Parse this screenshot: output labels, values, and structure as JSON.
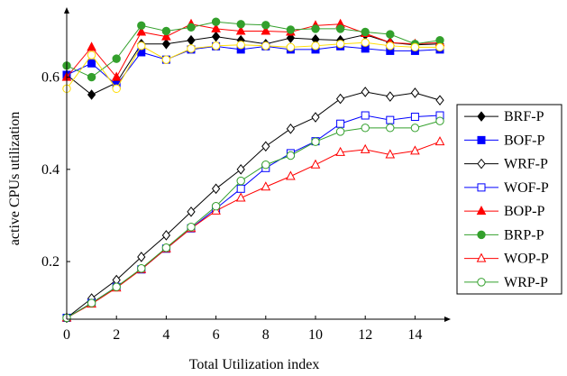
{
  "chart_data": {
    "type": "line",
    "xlabel": "Total Utilization index",
    "ylabel": "active CPUs utilization",
    "xlim": [
      0,
      15
    ],
    "ylim": [
      0.075,
      0.74
    ],
    "xticks": [
      0,
      2,
      4,
      6,
      8,
      10,
      12,
      14
    ],
    "yticks": [
      0.2,
      0.4,
      0.6
    ],
    "ytick_labels": [
      "0.2",
      "0.4",
      "0.6"
    ],
    "grid": false,
    "legend_position": "right",
    "x": [
      0,
      1,
      2,
      3,
      4,
      5,
      6,
      7,
      8,
      9,
      10,
      11,
      12,
      13,
      14,
      15
    ],
    "series": [
      {
        "name": "BRF-P",
        "color": "#000000",
        "marker": "diamond",
        "filled": true,
        "values": [
          0.605,
          0.562,
          0.588,
          0.672,
          0.672,
          0.68,
          0.688,
          0.68,
          0.672,
          0.685,
          0.682,
          0.68,
          0.692,
          0.675,
          0.67,
          0.672
        ]
      },
      {
        "name": "BOF-P",
        "color": "#0000ff",
        "marker": "square",
        "filled": true,
        "values": [
          0.605,
          0.63,
          0.583,
          0.654,
          0.638,
          0.66,
          0.667,
          0.66,
          0.667,
          0.66,
          0.66,
          0.667,
          0.662,
          0.657,
          0.657,
          0.66
        ]
      },
      {
        "name": "WRF-P",
        "color": "#000000",
        "marker": "diamond",
        "filled": false,
        "values": [
          0.078,
          0.12,
          0.16,
          0.21,
          0.257,
          0.308,
          0.358,
          0.4,
          0.45,
          0.488,
          0.513,
          0.553,
          0.568,
          0.558,
          0.566,
          0.55
        ]
      },
      {
        "name": "WOF-P",
        "color": "#0000ff",
        "marker": "square",
        "filled": false,
        "values": [
          0.078,
          0.11,
          0.145,
          0.183,
          0.228,
          0.272,
          0.315,
          0.358,
          0.403,
          0.435,
          0.461,
          0.499,
          0.517,
          0.507,
          0.514,
          0.517
        ]
      },
      {
        "name": "BOP-P",
        "color": "#ff0000",
        "marker": "triangle",
        "filled": true,
        "values": [
          0.6,
          0.665,
          0.6,
          0.698,
          0.688,
          0.715,
          0.705,
          0.7,
          0.7,
          0.698,
          0.712,
          0.715,
          0.695,
          0.675,
          0.672,
          0.675
        ]
      },
      {
        "name": "BRP-P",
        "color": "#33a02c",
        "marker": "circle",
        "filled": true,
        "values": [
          0.625,
          0.6,
          0.64,
          0.712,
          0.7,
          0.708,
          0.72,
          0.715,
          0.713,
          0.703,
          0.705,
          0.705,
          0.698,
          0.693,
          0.672,
          0.68
        ]
      },
      {
        "name": "WOP-P",
        "color": "#ff0000",
        "marker": "triangle",
        "filled": false,
        "values": [
          0.078,
          0.108,
          0.143,
          0.183,
          0.228,
          0.272,
          0.31,
          0.338,
          0.362,
          0.385,
          0.41,
          0.437,
          0.443,
          0.432,
          0.44,
          0.46
        ]
      },
      {
        "name": "WRP-P",
        "color": "#33a02c",
        "marker": "circle",
        "filled": false,
        "values": [
          0.078,
          0.11,
          0.145,
          0.185,
          0.23,
          0.275,
          0.32,
          0.375,
          0.41,
          0.43,
          0.46,
          0.482,
          0.49,
          0.49,
          0.49,
          0.505
        ]
      },
      {
        "name": "",
        "color": "#ffdd00",
        "marker": "circle",
        "filled": false,
        "in_legend": false,
        "values": [
          0.575,
          0.648,
          0.575,
          0.668,
          0.638,
          0.662,
          0.668,
          0.67,
          0.668,
          0.665,
          0.668,
          0.672,
          0.675,
          0.668,
          0.665,
          0.665
        ]
      }
    ]
  }
}
